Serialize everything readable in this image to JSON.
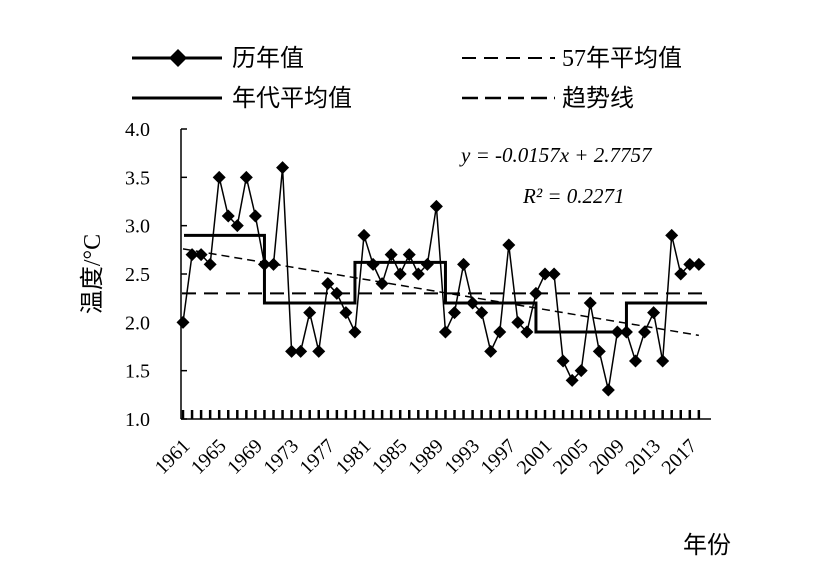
{
  "chart_data": {
    "type": "line",
    "xlabel": "年份",
    "ylabel": "温度/°C",
    "ylim": [
      1.0,
      4.0
    ],
    "yticks": [
      "4.0",
      "3.5",
      "3.0",
      "2.5",
      "2.0",
      "1.5",
      "1.0"
    ],
    "yticks_values": [
      4.0,
      3.5,
      3.0,
      2.5,
      2.0,
      1.5,
      1.0
    ],
    "xlim": [
      1961,
      2018
    ],
    "xtick_labels": [
      "1961",
      "1965",
      "1969",
      "1973",
      "1977",
      "1981",
      "1985",
      "1989",
      "1993",
      "1997",
      "2001",
      "2005",
      "2009",
      "2013",
      "2017"
    ],
    "xtick_values": [
      1961,
      1965,
      1969,
      1973,
      1977,
      1981,
      1985,
      1989,
      1993,
      1997,
      2001,
      2005,
      2009,
      2013,
      2017
    ],
    "legend": {
      "annual": "历年值",
      "mean57": "57年平均值",
      "decadal": "年代平均值",
      "trend": "趋势线"
    },
    "equation_line1": "y = -0.0157x + 2.7757",
    "equation_line2": "R² = 0.2271",
    "series": [
      {
        "name": "历年值",
        "marker": "diamond",
        "x": [
          1961,
          1962,
          1963,
          1964,
          1965,
          1966,
          1967,
          1968,
          1969,
          1970,
          1971,
          1972,
          1973,
          1974,
          1975,
          1976,
          1977,
          1978,
          1979,
          1980,
          1981,
          1982,
          1983,
          1984,
          1985,
          1986,
          1987,
          1988,
          1989,
          1990,
          1991,
          1992,
          1993,
          1994,
          1995,
          1996,
          1997,
          1998,
          1999,
          2000,
          2001,
          2002,
          2003,
          2004,
          2005,
          2006,
          2007,
          2008,
          2009,
          2010,
          2011,
          2012,
          2013,
          2014,
          2015,
          2016,
          2017,
          2018
        ],
        "y": [
          2.0,
          2.7,
          2.7,
          2.6,
          3.5,
          3.1,
          3.0,
          3.5,
          3.1,
          2.6,
          2.6,
          3.6,
          1.7,
          1.7,
          2.1,
          1.7,
          2.4,
          2.3,
          2.1,
          1.9,
          2.9,
          2.6,
          2.4,
          2.7,
          2.5,
          2.7,
          2.5,
          2.6,
          3.2,
          1.9,
          2.1,
          2.6,
          2.2,
          2.1,
          1.7,
          1.9,
          2.8,
          2.0,
          1.9,
          2.3,
          2.5,
          2.5,
          1.6,
          1.4,
          1.5,
          2.2,
          1.7,
          1.3,
          1.9,
          1.9,
          1.6,
          1.9,
          2.1,
          1.6,
          2.9,
          2.5,
          2.6,
          2.6
        ]
      },
      {
        "name": "年代平均值",
        "segments": [
          {
            "x0": 1961,
            "x1": 1970,
            "y": 2.9
          },
          {
            "x0": 1970,
            "x1": 1980,
            "y": 2.2
          },
          {
            "x0": 1980,
            "x1": 1990,
            "y": 2.62
          },
          {
            "x0": 1990,
            "x1": 2000,
            "y": 2.2
          },
          {
            "x0": 2000,
            "x1": 2010,
            "y": 1.9
          },
          {
            "x0": 2010,
            "x1": 2017,
            "y": 2.2
          }
        ]
      },
      {
        "name": "57年平均值",
        "y": 2.3
      },
      {
        "name": "趋势线",
        "slope": -0.0157,
        "intercept": 2.7757
      }
    ]
  }
}
